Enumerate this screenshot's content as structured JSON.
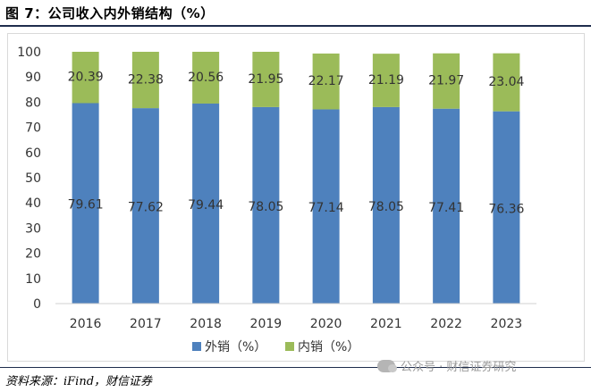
{
  "figure": {
    "title": "图 7：公司收入内外销结构（%）",
    "source": "资料来源：iFind，财信证券",
    "watermark": "公众号 · 财信证券研究",
    "watermark_icon": "wechat-icon"
  },
  "chart_data": {
    "type": "bar",
    "stacked": true,
    "categories": [
      "2016",
      "2017",
      "2018",
      "2019",
      "2020",
      "2021",
      "2022",
      "2023"
    ],
    "series": [
      {
        "name": "外销（%）",
        "color": "#4e81bd",
        "values": [
          79.61,
          77.62,
          79.44,
          78.05,
          77.14,
          78.05,
          77.41,
          76.36
        ]
      },
      {
        "name": "内销（%）",
        "color": "#9bbb59",
        "values": [
          20.39,
          22.38,
          20.56,
          21.95,
          22.17,
          21.19,
          21.97,
          23.04
        ]
      }
    ],
    "ylim": [
      0,
      100
    ],
    "yticks": [
      0,
      10,
      20,
      30,
      40,
      50,
      60,
      70,
      80,
      90,
      100
    ],
    "grid": false,
    "data_labels": true,
    "legend_position": "bottom"
  }
}
